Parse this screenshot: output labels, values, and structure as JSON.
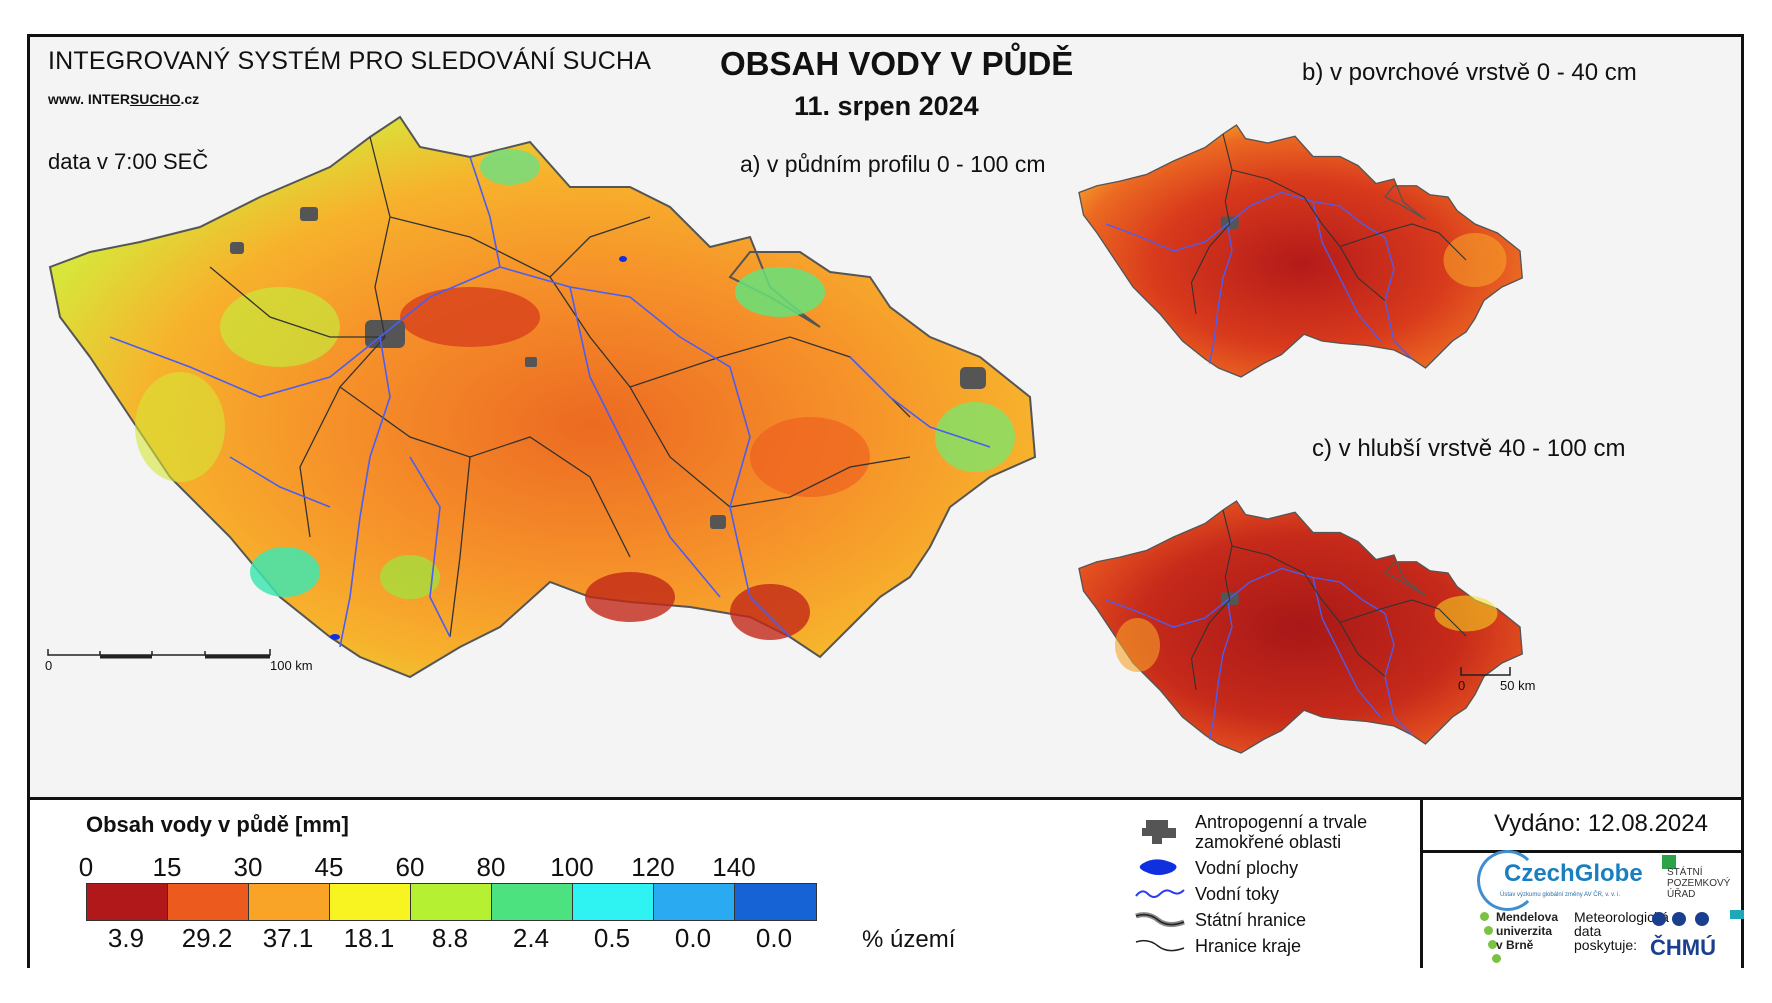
{
  "header": {
    "system_title": "INTEGROVANÝ SYSTÉM PRO SLEDOVÁNÍ SUCHA",
    "website_prefix": "www. INTER",
    "website_underlined": "SUCHO",
    "website_suffix": ".cz",
    "data_time": "data v 7:00 SEČ",
    "main_title": "OBSAH VODY V PŮDĚ",
    "date": "11. srpen 2024"
  },
  "maps": {
    "a_title": "a) v půdním profilu 0 - 100 cm",
    "b_title": "b) v povrchové vrstvě 0 - 40 cm",
    "c_title": "c) v hlubší vrstvě 40 - 100 cm",
    "scale_a": {
      "start": "0",
      "end": "100 km"
    },
    "scale_c": {
      "start": "0",
      "end": "50 km"
    }
  },
  "legend": {
    "title": "Obsah vody v půdě  [mm]",
    "thresholds": [
      "0",
      "15",
      "30",
      "45",
      "60",
      "80",
      "100",
      "120",
      "140"
    ],
    "colors": [
      "#b0181a",
      "#ec5a1e",
      "#f9a427",
      "#f7f421",
      "#b6f032",
      "#4ce27f",
      "#2ff2f2",
      "#2aaaf0",
      "#1663d6"
    ],
    "percentages": [
      "3.9",
      "29.2",
      "37.1",
      "18.1",
      "8.8",
      "2.4",
      "0.5",
      "0.0",
      "0.0"
    ],
    "percent_label": "% území"
  },
  "symbols": [
    {
      "icon": "urban-area-icon",
      "label": "Antropogenní a trvale\nzamokřené oblasti"
    },
    {
      "icon": "water-body-icon",
      "label": "Vodní plochy"
    },
    {
      "icon": "river-icon",
      "label": "Vodní toky"
    },
    {
      "icon": "state-border-icon",
      "label": "Státní hranice"
    },
    {
      "icon": "region-border-icon",
      "label": "Hranice kraje"
    }
  ],
  "issued": "Vydáno: 12.08.2024",
  "logos": {
    "czechglobe": "CzechGlobe",
    "czechglobe_sub": "Ústav výzkumu globální změny AV ČR, v. v. i.",
    "spu": "STÁTNÍ\nPOZEMKOVÝ\nÚŘAD",
    "mendelu": "Mendelova\nuniverzita\nv Brně",
    "meteo": "Meteorologická\ndata\nposkytuje:",
    "chmu": "ČHMÚ"
  }
}
